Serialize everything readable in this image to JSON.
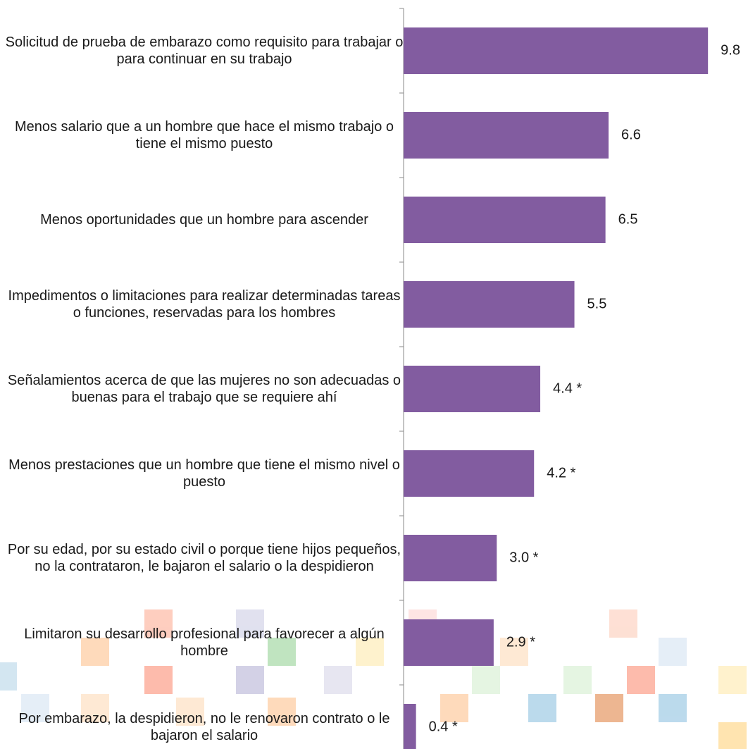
{
  "chart_data": {
    "type": "hbar",
    "categories": [
      "Solicitud de prueba de embarazo como requisito para trabajar o para continuar en su trabajo",
      "Menos salario que a un hombre que hace el mismo trabajo o tiene el mismo puesto",
      "Menos oportunidades que un hombre para ascender",
      "Impedimentos o limitaciones para realizar determinadas tareas o funciones, reservadas para los hombres",
      "Señalamientos acerca de que las mujeres no son adecuadas o buenas para el trabajo que se requiere ahí",
      "Menos prestaciones que un hombre que tiene el mismo nivel o puesto",
      "Por su edad, por su estado civil o porque tiene hijos pequeños, no la contrataron, le bajaron el salario o la despidieron",
      "Limitaron su desarrollo profesional para favorecer a algún hombre",
      "Por embarazo, la despidieron, no le renovaron contrato o le bajaron el salario"
    ],
    "values": [
      9.8,
      6.6,
      6.5,
      5.5,
      4.4,
      4.2,
      3.0,
      2.9,
      0.4
    ],
    "value_labels": [
      "9.8",
      "6.6",
      "6.5",
      "5.5",
      "4.4 *",
      "4.2 *",
      "3.0 *",
      "2.9 *",
      "0.4 *"
    ],
    "color": "#825ca0"
  }
}
